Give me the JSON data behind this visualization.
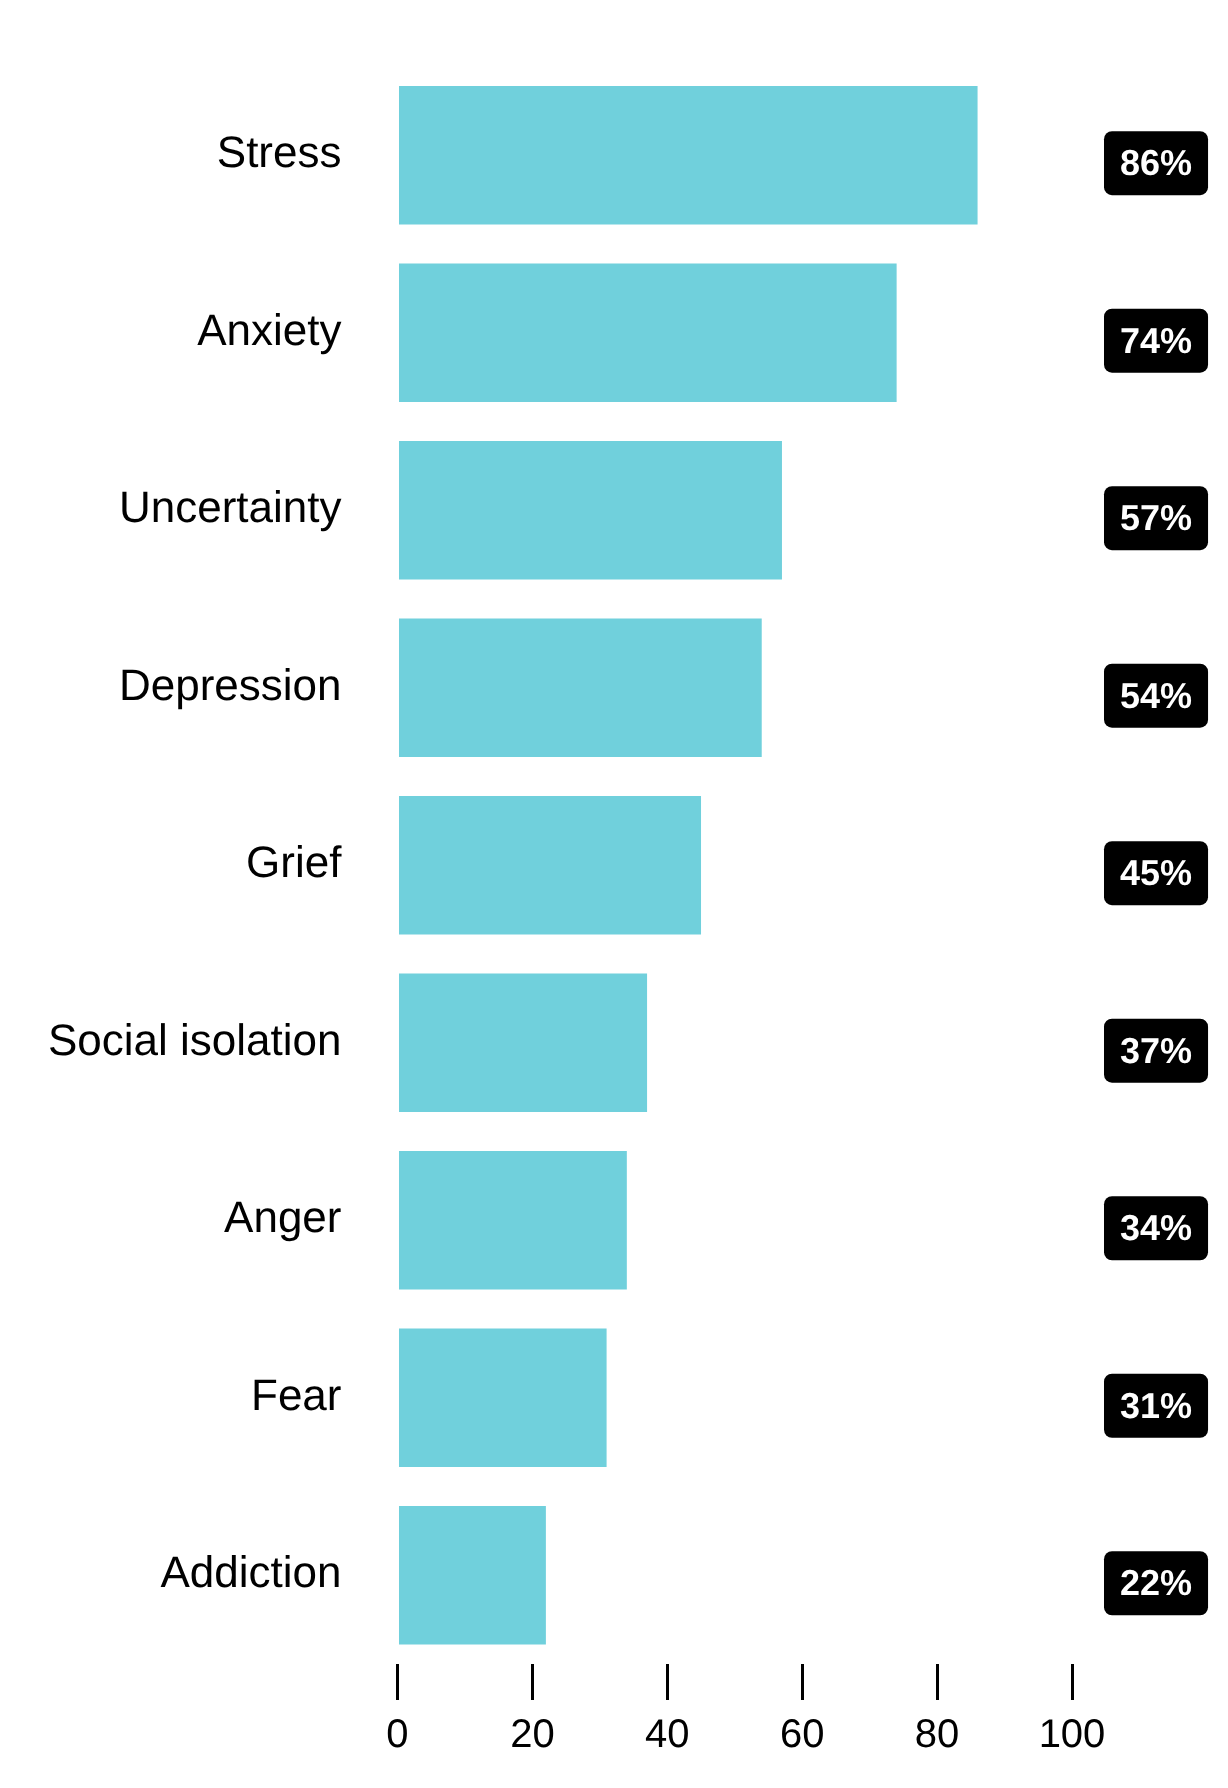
{
  "chart_data": {
    "type": "bar",
    "orientation": "horizontal",
    "categories": [
      "Stress",
      "Anxiety",
      "Uncertainty",
      "Depression",
      "Grief",
      "Social isolation",
      "Anger",
      "Fear",
      "Addiction"
    ],
    "values": [
      86,
      74,
      57,
      54,
      45,
      37,
      34,
      31,
      22
    ],
    "value_labels": [
      "86%",
      "74%",
      "57%",
      "54%",
      "45%",
      "37%",
      "34%",
      "31%",
      "22%"
    ],
    "color": "#70d0dc",
    "xlim": [
      0,
      100
    ],
    "xticks": [
      0,
      20,
      40,
      60,
      80,
      100
    ],
    "grid": false,
    "legend": false
  }
}
